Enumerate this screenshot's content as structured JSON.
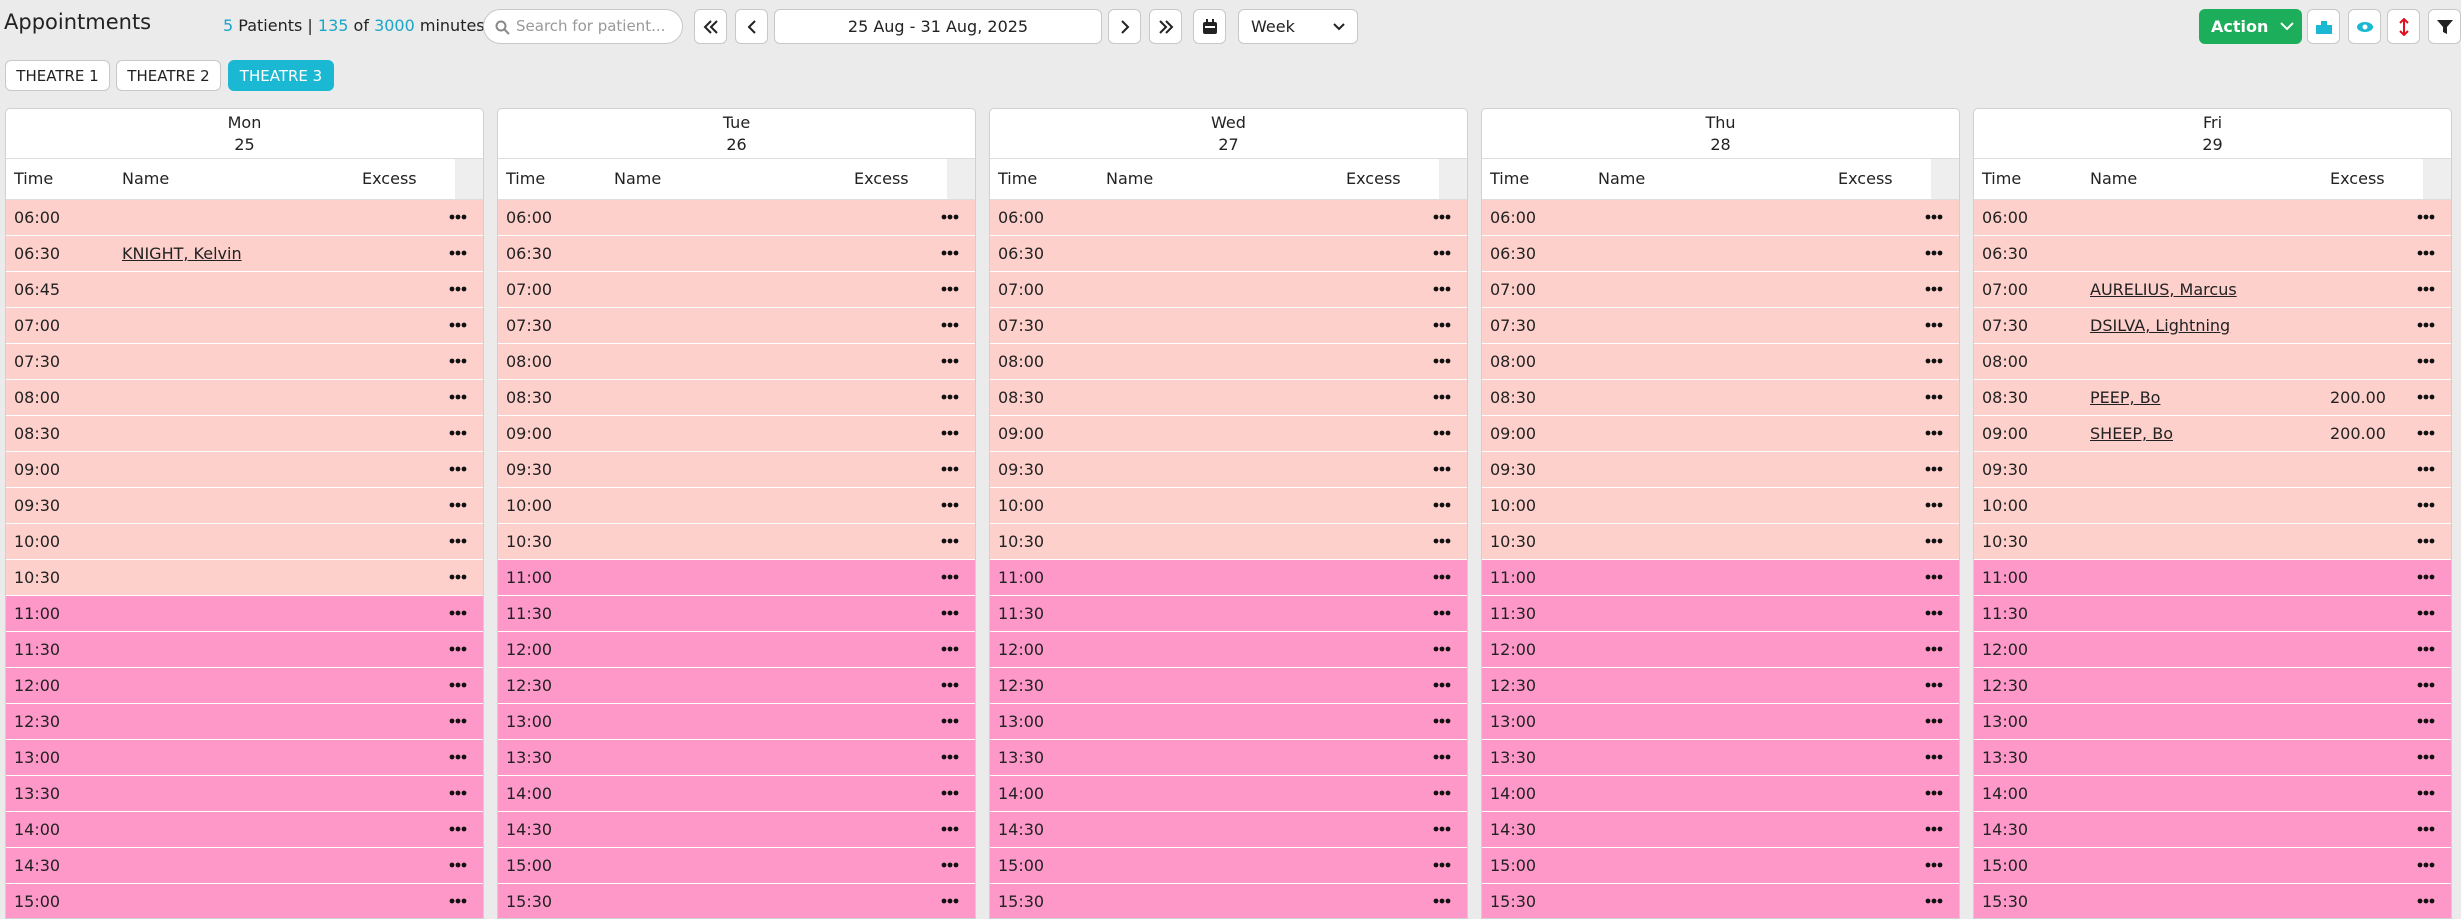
{
  "header": {
    "title": "Appointments",
    "patients": 5,
    "patients_label": "Patients |",
    "minutes_used": 135,
    "of": "of",
    "minutes_total": 3000,
    "minutes_label": "minutes",
    "search_placeholder": "Search for patient...",
    "date_range": "25 Aug - 31 Aug, 2025",
    "view": "Week",
    "action": "Action"
  },
  "tabs": [
    {
      "label": "THEATRE 1"
    },
    {
      "label": "THEATRE 2"
    },
    {
      "label": "THEATRE 3",
      "active": true
    }
  ],
  "columns": {
    "time": "Time",
    "name": "Name",
    "excess": "Excess"
  },
  "days": [
    {
      "day": "Mon",
      "date": 25,
      "rows": [
        {
          "time": "06:00",
          "color": "#fdd0cc"
        },
        {
          "time": "06:30",
          "name": "KNIGHT, Kelvin",
          "color": "#fdd0cc"
        },
        {
          "time": "06:45",
          "color": "#fdd0cc"
        },
        {
          "time": "07:00",
          "color": "#fdd0cc"
        },
        {
          "time": "07:30",
          "color": "#fdd0cc"
        },
        {
          "time": "08:00",
          "color": "#fdd0cc"
        },
        {
          "time": "08:30",
          "color": "#fdd0cc"
        },
        {
          "time": "09:00",
          "color": "#fdd0cc"
        },
        {
          "time": "09:30",
          "color": "#fdd0cc"
        },
        {
          "time": "10:00",
          "color": "#fdd0cc"
        },
        {
          "time": "10:30",
          "color": "#fdd0cc"
        },
        {
          "time": "11:00",
          "color": "#fd98c9"
        },
        {
          "time": "11:30",
          "color": "#fd98c9"
        },
        {
          "time": "12:00",
          "color": "#fd98c9"
        },
        {
          "time": "12:30",
          "color": "#fd98c9"
        },
        {
          "time": "13:00",
          "color": "#fd98c9"
        },
        {
          "time": "13:30",
          "color": "#fd98c9"
        },
        {
          "time": "14:00",
          "color": "#fd98c9"
        },
        {
          "time": "14:30",
          "color": "#fd98c9"
        },
        {
          "time": "15:00",
          "color": "#fd98c9"
        }
      ]
    },
    {
      "day": "Tue",
      "date": 26,
      "rows": [
        {
          "time": "06:00",
          "color": "#fdd0cc"
        },
        {
          "time": "06:30",
          "color": "#fdd0cc"
        },
        {
          "time": "07:00",
          "color": "#fdd0cc"
        },
        {
          "time": "07:30",
          "color": "#fdd0cc"
        },
        {
          "time": "08:00",
          "color": "#fdd0cc"
        },
        {
          "time": "08:30",
          "color": "#fdd0cc"
        },
        {
          "time": "09:00",
          "color": "#fdd0cc"
        },
        {
          "time": "09:30",
          "color": "#fdd0cc"
        },
        {
          "time": "10:00",
          "color": "#fdd0cc"
        },
        {
          "time": "10:30",
          "color": "#fdd0cc"
        },
        {
          "time": "11:00",
          "color": "#fd98c9"
        },
        {
          "time": "11:30",
          "color": "#fd98c9"
        },
        {
          "time": "12:00",
          "color": "#fd98c9"
        },
        {
          "time": "12:30",
          "color": "#fd98c9"
        },
        {
          "time": "13:00",
          "color": "#fd98c9"
        },
        {
          "time": "13:30",
          "color": "#fd98c9"
        },
        {
          "time": "14:00",
          "color": "#fd98c9"
        },
        {
          "time": "14:30",
          "color": "#fd98c9"
        },
        {
          "time": "15:00",
          "color": "#fd98c9"
        },
        {
          "time": "15:30",
          "color": "#fd98c9"
        }
      ]
    },
    {
      "day": "Wed",
      "date": 27,
      "rows": [
        {
          "time": "06:00",
          "color": "#fdd0cc"
        },
        {
          "time": "06:30",
          "color": "#fdd0cc"
        },
        {
          "time": "07:00",
          "color": "#fdd0cc"
        },
        {
          "time": "07:30",
          "color": "#fdd0cc"
        },
        {
          "time": "08:00",
          "color": "#fdd0cc"
        },
        {
          "time": "08:30",
          "color": "#fdd0cc"
        },
        {
          "time": "09:00",
          "color": "#fdd0cc"
        },
        {
          "time": "09:30",
          "color": "#fdd0cc"
        },
        {
          "time": "10:00",
          "color": "#fdd0cc"
        },
        {
          "time": "10:30",
          "color": "#fdd0cc"
        },
        {
          "time": "11:00",
          "color": "#fd98c9"
        },
        {
          "time": "11:30",
          "color": "#fd98c9"
        },
        {
          "time": "12:00",
          "color": "#fd98c9"
        },
        {
          "time": "12:30",
          "color": "#fd98c9"
        },
        {
          "time": "13:00",
          "color": "#fd98c9"
        },
        {
          "time": "13:30",
          "color": "#fd98c9"
        },
        {
          "time": "14:00",
          "color": "#fd98c9"
        },
        {
          "time": "14:30",
          "color": "#fd98c9"
        },
        {
          "time": "15:00",
          "color": "#fd98c9"
        },
        {
          "time": "15:30",
          "color": "#fd98c9"
        }
      ]
    },
    {
      "day": "Thu",
      "date": 28,
      "rows": [
        {
          "time": "06:00",
          "color": "#fdd0cc"
        },
        {
          "time": "06:30",
          "color": "#fdd0cc"
        },
        {
          "time": "07:00",
          "color": "#fdd0cc"
        },
        {
          "time": "07:30",
          "color": "#fdd0cc"
        },
        {
          "time": "08:00",
          "color": "#fdd0cc"
        },
        {
          "time": "08:30",
          "color": "#fdd0cc"
        },
        {
          "time": "09:00",
          "color": "#fdd0cc"
        },
        {
          "time": "09:30",
          "color": "#fdd0cc"
        },
        {
          "time": "10:00",
          "color": "#fdd0cc"
        },
        {
          "time": "10:30",
          "color": "#fdd0cc"
        },
        {
          "time": "11:00",
          "color": "#fd98c9"
        },
        {
          "time": "11:30",
          "color": "#fd98c9"
        },
        {
          "time": "12:00",
          "color": "#fd98c9"
        },
        {
          "time": "12:30",
          "color": "#fd98c9"
        },
        {
          "time": "13:00",
          "color": "#fd98c9"
        },
        {
          "time": "13:30",
          "color": "#fd98c9"
        },
        {
          "time": "14:00",
          "color": "#fd98c9"
        },
        {
          "time": "14:30",
          "color": "#fd98c9"
        },
        {
          "time": "15:00",
          "color": "#fd98c9"
        },
        {
          "time": "15:30",
          "color": "#fd98c9"
        }
      ]
    },
    {
      "day": "Fri",
      "date": 29,
      "rows": [
        {
          "time": "06:00",
          "color": "#fdd0cc"
        },
        {
          "time": "06:30",
          "color": "#fdd0cc"
        },
        {
          "time": "07:00",
          "name": "AURELIUS, Marcus",
          "color": "#fdd0cc"
        },
        {
          "time": "07:30",
          "name": "DSILVA, Lightning",
          "color": "#fdd0cc"
        },
        {
          "time": "08:00",
          "color": "#fdd0cc"
        },
        {
          "time": "08:30",
          "name": "PEEP, Bo",
          "excess": "200.00",
          "color": "#fdd0cc"
        },
        {
          "time": "09:00",
          "name": "SHEEP, Bo",
          "excess": "200.00",
          "color": "#fdd0cc"
        },
        {
          "time": "09:30",
          "color": "#fdd0cc"
        },
        {
          "time": "10:00",
          "color": "#fdd0cc"
        },
        {
          "time": "10:30",
          "color": "#fdd0cc"
        },
        {
          "time": "11:00",
          "color": "#fd98c9"
        },
        {
          "time": "11:30",
          "color": "#fd98c9"
        },
        {
          "time": "12:00",
          "color": "#fd98c9"
        },
        {
          "time": "12:30",
          "color": "#fd98c9"
        },
        {
          "time": "13:00",
          "color": "#fd98c9"
        },
        {
          "time": "13:30",
          "color": "#fd98c9"
        },
        {
          "time": "14:00",
          "color": "#fd98c9"
        },
        {
          "time": "14:30",
          "color": "#fd98c9"
        },
        {
          "time": "15:00",
          "color": "#fd98c9"
        },
        {
          "time": "15:30",
          "color": "#fd98c9"
        }
      ]
    }
  ]
}
